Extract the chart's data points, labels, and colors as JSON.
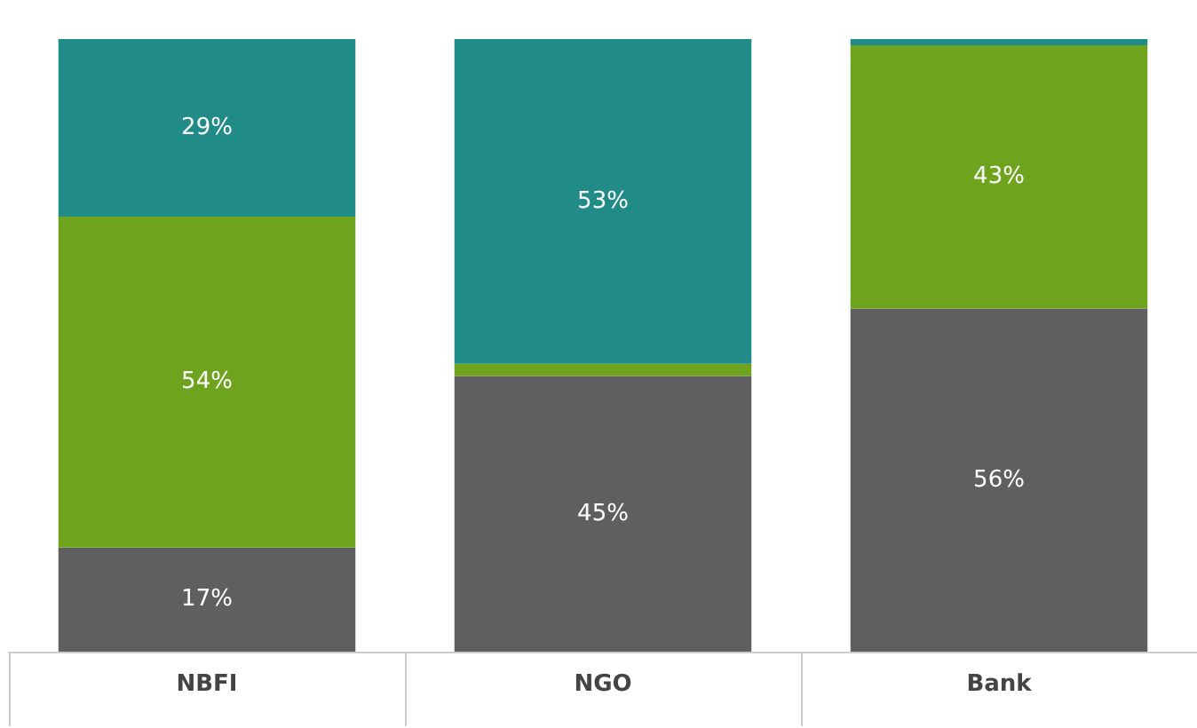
{
  "chart_data": {
    "type": "bar",
    "stacked": true,
    "categories": [
      "NBFI",
      "NGO",
      "Bank"
    ],
    "ylim": [
      0,
      100
    ],
    "tick_labels": "x",
    "series": [
      {
        "color": "#5f5f61",
        "values": [
          17,
          45,
          56
        ],
        "value_labels": [
          "17%",
          "45%",
          "56%"
        ]
      },
      {
        "color": "#6ea31e",
        "values": [
          54,
          2,
          43
        ],
        "value_labels": [
          "54%",
          null,
          "43%"
        ]
      },
      {
        "color": "#218b87",
        "values": [
          29,
          53,
          1
        ],
        "value_labels": [
          "29%",
          "53%",
          null
        ]
      }
    ]
  }
}
